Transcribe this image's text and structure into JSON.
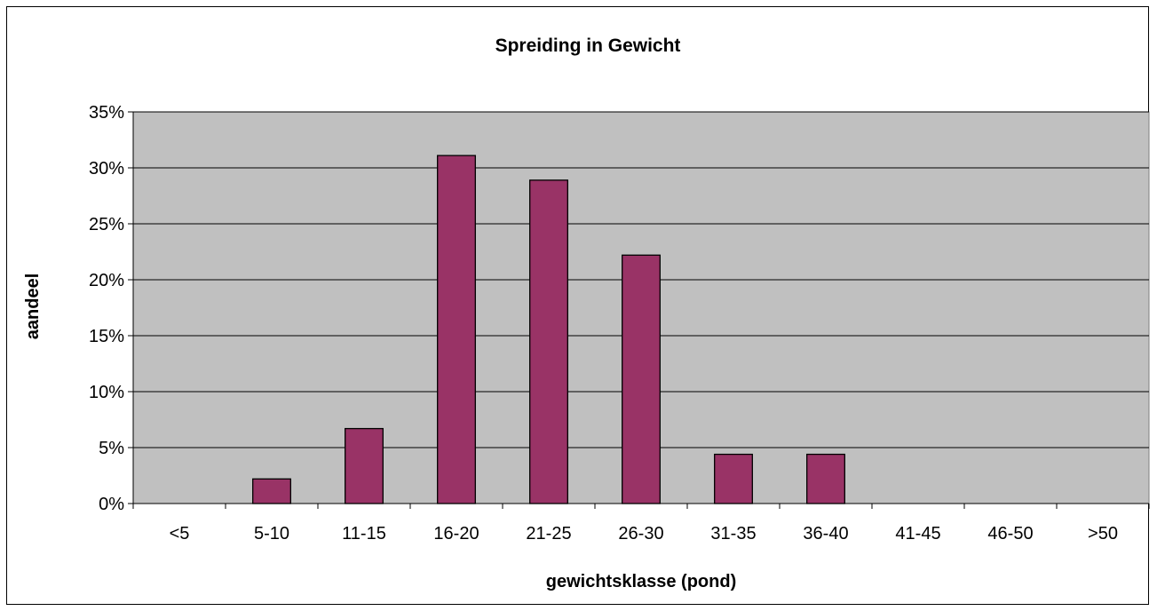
{
  "chart_data": {
    "type": "bar",
    "title": "Spreiding in Gewicht",
    "xlabel": "gewichtsklasse (pond)",
    "ylabel": "aandeel",
    "categories": [
      "<5",
      "5-10",
      "11-15",
      "16-20",
      "21-25",
      "26-30",
      "31-35",
      "36-40",
      "41-45",
      "46-50",
      ">50"
    ],
    "values": [
      0,
      2.2,
      6.7,
      31.1,
      28.9,
      22.2,
      4.4,
      4.4,
      0,
      0,
      0
    ],
    "yticks": [
      "0%",
      "5%",
      "10%",
      "15%",
      "20%",
      "25%",
      "30%",
      "35%"
    ],
    "ylim": [
      0,
      35
    ],
    "grid": true,
    "colors": {
      "bar_fill": "#993366",
      "bar_stroke": "#000000",
      "plot_background": "#c0c0c0",
      "gridline": "#000000"
    }
  }
}
